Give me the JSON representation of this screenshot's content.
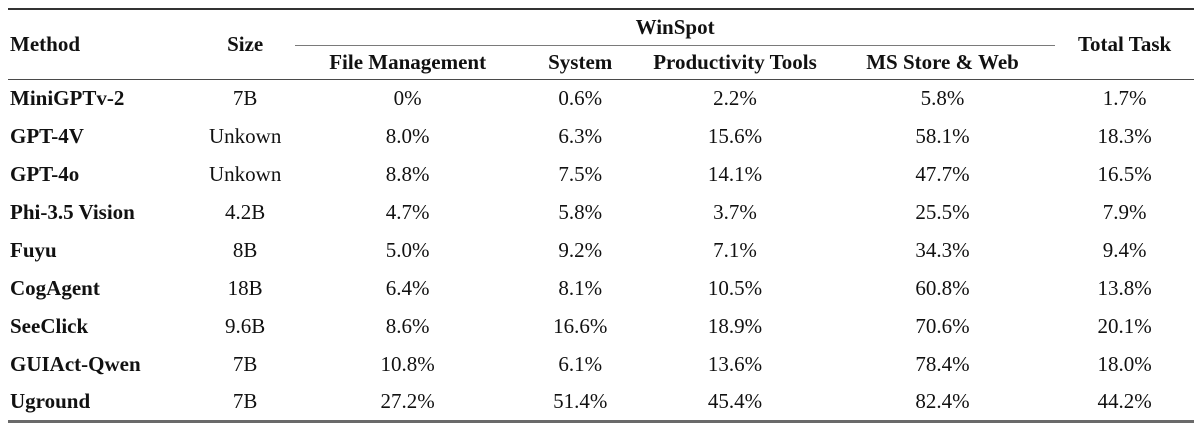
{
  "table": {
    "group_header": "WinSpot",
    "columns": {
      "method": "Method",
      "size": "Size",
      "sub": [
        "File Management",
        "System",
        "Productivity Tools",
        "MS Store & Web"
      ],
      "total": "Total Task"
    },
    "rows": [
      {
        "method": "MiniGPTv-2",
        "size": "7B",
        "values": [
          "0%",
          "0.6%",
          "2.2%",
          "5.8%"
        ],
        "total": "1.7%"
      },
      {
        "method": "GPT-4V",
        "size": "Unkown",
        "values": [
          "8.0%",
          "6.3%",
          "15.6%",
          "58.1%"
        ],
        "total": "18.3%"
      },
      {
        "method": "GPT-4o",
        "size": "Unkown",
        "values": [
          "8.8%",
          "7.5%",
          "14.1%",
          "47.7%"
        ],
        "total": "16.5%"
      },
      {
        "method": "Phi-3.5 Vision",
        "size": "4.2B",
        "values": [
          "4.7%",
          "5.8%",
          "3.7%",
          "25.5%"
        ],
        "total": "7.9%"
      },
      {
        "method": "Fuyu",
        "size": "8B",
        "values": [
          "5.0%",
          "9.2%",
          "7.1%",
          "34.3%"
        ],
        "total": "9.4%"
      },
      {
        "method": "CogAgent",
        "size": "18B",
        "values": [
          "6.4%",
          "8.1%",
          "10.5%",
          "60.8%"
        ],
        "total": "13.8%"
      },
      {
        "method": "SeeClick",
        "size": "9.6B",
        "values": [
          "8.6%",
          "16.6%",
          "18.9%",
          "70.6%"
        ],
        "total": "20.1%"
      },
      {
        "method": "GUIAct-Qwen",
        "size": "7B",
        "values": [
          "10.8%",
          "6.1%",
          "13.6%",
          "78.4%"
        ],
        "total": "18.0%"
      },
      {
        "method": "Uground",
        "size": "7B",
        "values": [
          "27.2%",
          "51.4%",
          "45.4%",
          "82.4%"
        ],
        "total": "44.2%"
      }
    ]
  },
  "colors": {
    "rule-heavy": "#333333",
    "rule-mid": "#4a4a4a",
    "rule-light": "#7a7a7a",
    "rule-bottom": "#6a6a6a",
    "text": "#111111"
  }
}
